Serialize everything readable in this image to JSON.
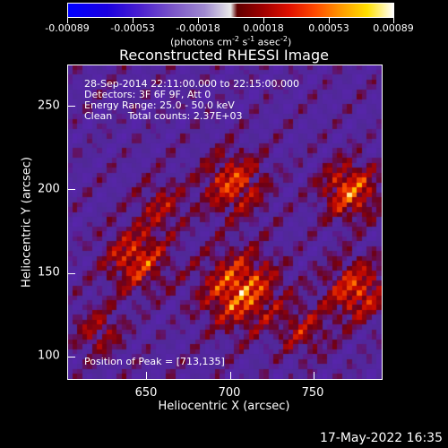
{
  "colorbar": {
    "tick_labels": [
      "-0.00089",
      "-0.00053",
      "-0.00018",
      "0.00018",
      "0.00053",
      "0.00089"
    ],
    "units_label": "(photons cm",
    "units_sup1": "-2",
    "units_mid1": " s",
    "units_sup2": "-1",
    "units_mid2": " asec",
    "units_sup3": "-2",
    "units_end": ")"
  },
  "plot": {
    "title": "Reconstructed RHESSI Image",
    "info_time": "28-Sep-2014 22:11:00.000 to 22:15:00.000",
    "info_detectors": "Detectors: 3F 6F 9F, Att 0",
    "info_energy": "Energy Range: 25.0 - 50.0 keV",
    "info_clean": "Clean     Total counts: 2.37E+03",
    "peak_label": "Position of Peak = [713,135]",
    "x_ticks": [
      "650",
      "700",
      "750"
    ],
    "y_ticks": [
      "100",
      "150",
      "200",
      "250"
    ],
    "x_axis_title": "Heliocentric X (arcsec)",
    "y_axis_title": "Heliocentric Y (arcsec)",
    "x_range": [
      603,
      790
    ],
    "y_range": [
      85,
      272
    ]
  },
  "footer": {
    "timestamp": "17-May-2022 16:35"
  }
}
